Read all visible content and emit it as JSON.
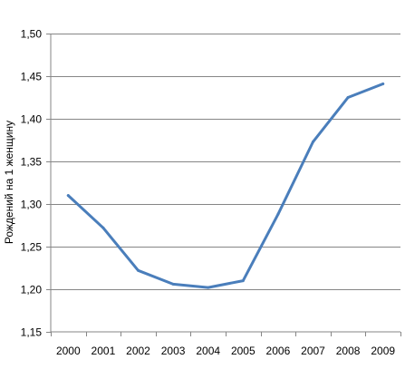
{
  "chart_data": {
    "type": "line",
    "title": "",
    "xlabel": "",
    "ylabel": "Рождений на 1 женщину",
    "x": [
      "2000",
      "2001",
      "2002",
      "2003",
      "2004",
      "2005",
      "2006",
      "2007",
      "2008",
      "2009"
    ],
    "x_tick_labels": [
      "2000",
      "2001",
      "2002",
      "2003",
      "2004",
      "2005",
      "2006",
      "2007",
      "2008",
      "2009"
    ],
    "y_tick_values": [
      1.15,
      1.2,
      1.25,
      1.3,
      1.35,
      1.4,
      1.45,
      1.5
    ],
    "y_tick_labels": [
      "1,15",
      "1,20",
      "1,25",
      "1,30",
      "1,35",
      "1,40",
      "1,45",
      "1,50"
    ],
    "ylim": [
      1.15,
      1.5
    ],
    "grid": "horizontal",
    "legend": "none",
    "series": [
      {
        "color": "#4a7ebb",
        "values": [
          1.31,
          1.272,
          1.222,
          1.206,
          1.202,
          1.21,
          1.288,
          1.373,
          1.425,
          1.441
        ]
      }
    ]
  }
}
